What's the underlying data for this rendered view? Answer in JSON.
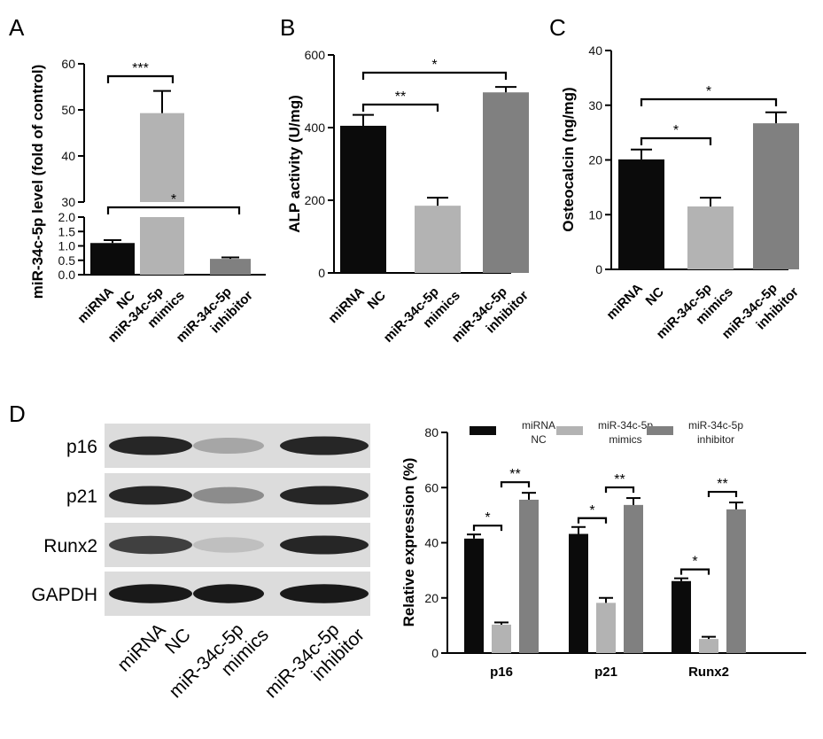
{
  "colors": {
    "miRNA NC": "#0b0b0b",
    "miR-34c-5p mimics": "#b3b3b3",
    "miR-34c-5p inhibitor": "#808080"
  },
  "chart_data": [
    {
      "panel": "A",
      "type": "bar",
      "ylabel": "miR-34c-5p level (fold of control)",
      "categories": [
        [
          "miRNA",
          "NC"
        ],
        [
          "miR-34c-5p",
          "mimics"
        ],
        [
          "miR-34c-5p",
          "inhibitor"
        ]
      ],
      "values": [
        1.1,
        49.3,
        0.55
      ],
      "errors": [
        0.1,
        4.8,
        0.05
      ],
      "yaxis_break": {
        "lower_ticks": [
          0.0,
          0.5,
          1.0,
          1.5,
          2.0
        ],
        "upper_ticks": [
          30,
          40,
          50,
          60
        ]
      },
      "significance": [
        {
          "pair": [
            0,
            1
          ],
          "label": "***"
        },
        {
          "pair": [
            0,
            2
          ],
          "label": "*"
        }
      ]
    },
    {
      "panel": "B",
      "type": "bar",
      "ylabel": "ALP activity (U/mg)",
      "categories": [
        [
          "miRNA",
          "NC"
        ],
        [
          "miR-34c-5p",
          "mimics"
        ],
        [
          "miR-34c-5p",
          "inhibitor"
        ]
      ],
      "values": [
        405,
        185,
        497
      ],
      "errors": [
        30,
        22,
        15
      ],
      "ylim": [
        0,
        600
      ],
      "yticks": [
        0,
        200,
        400,
        600
      ],
      "significance": [
        {
          "pair": [
            0,
            1
          ],
          "label": "**"
        },
        {
          "pair": [
            0,
            2
          ],
          "label": "*"
        }
      ]
    },
    {
      "panel": "C",
      "type": "bar",
      "ylabel": "Osteocalcin (ng/mg)",
      "categories": [
        [
          "miRNA",
          "NC"
        ],
        [
          "miR-34c-5p",
          "mimics"
        ],
        [
          "miR-34c-5p",
          "inhibitor"
        ]
      ],
      "values": [
        20.1,
        11.5,
        26.7
      ],
      "errors": [
        1.8,
        1.6,
        2.0
      ],
      "ylim": [
        0,
        40
      ],
      "yticks": [
        0,
        10,
        20,
        30,
        40
      ],
      "significance": [
        {
          "pair": [
            0,
            1
          ],
          "label": "*"
        },
        {
          "pair": [
            0,
            2
          ],
          "label": "*"
        }
      ]
    },
    {
      "panel": "D",
      "type": "bar",
      "ylabel": "Relative expression (%)",
      "categories": [
        "p16",
        "p21",
        "Runx2"
      ],
      "ylim": [
        0,
        80
      ],
      "yticks": [
        0,
        20,
        40,
        60,
        80
      ],
      "legend": "top",
      "series": [
        {
          "name": [
            "miRNA",
            "NC"
          ],
          "values": [
            41.5,
            43.2,
            26.1
          ],
          "errors": [
            1.5,
            2.5,
            1.0
          ]
        },
        {
          "name": [
            "miR-34c-5p",
            "mimics"
          ],
          "values": [
            10.3,
            18.2,
            5.1
          ],
          "errors": [
            0.8,
            1.8,
            0.8
          ]
        },
        {
          "name": [
            "miR-34c-5p",
            "inhibitor"
          ],
          "values": [
            55.6,
            53.7,
            52.1
          ],
          "errors": [
            2.5,
            2.5,
            2.5
          ]
        }
      ],
      "significance": [
        {
          "group": 0,
          "pair": [
            0,
            1
          ],
          "label": "*"
        },
        {
          "group": 0,
          "pair": [
            1,
            2
          ],
          "label": "**"
        },
        {
          "group": 1,
          "pair": [
            0,
            1
          ],
          "label": "*"
        },
        {
          "group": 1,
          "pair": [
            1,
            2
          ],
          "label": "**"
        },
        {
          "group": 2,
          "pair": [
            0,
            1
          ],
          "label": "*"
        },
        {
          "group": 2,
          "pair": [
            1,
            2
          ],
          "label": "**"
        }
      ]
    }
  ],
  "western_blot": {
    "panel": "D",
    "rows": [
      {
        "label": "p16",
        "intensities": [
          0.85,
          0.35,
          0.85
        ]
      },
      {
        "label": "p21",
        "intensities": [
          0.85,
          0.45,
          0.85
        ]
      },
      {
        "label": "Runx2",
        "intensities": [
          0.75,
          0.25,
          0.85
        ]
      },
      {
        "label": "GAPDH",
        "intensities": [
          0.9,
          0.9,
          0.9
        ]
      }
    ],
    "lanes": [
      [
        "miRNA",
        "NC"
      ],
      [
        "miR-34c-5p",
        "mimics"
      ],
      [
        "miR-34c-5p",
        "inhibitor"
      ]
    ]
  }
}
